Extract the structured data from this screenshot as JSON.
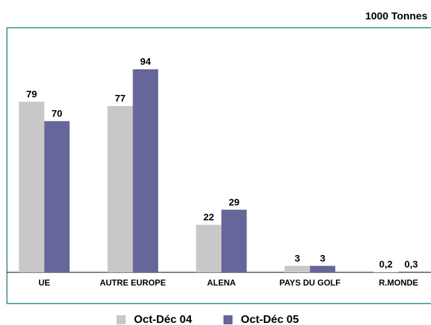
{
  "chart_data": {
    "type": "bar",
    "subtitle": "1000 Tonnes",
    "categories": [
      "UE",
      "AUTRE EUROPE",
      "ALENA",
      "PAYS DU GOLF",
      "R.MONDE"
    ],
    "series": [
      {
        "name": "Oct-Déc 04",
        "color": "#c8c8c8",
        "values": [
          79,
          77,
          22,
          3,
          0.2
        ],
        "value_labels": [
          "79",
          "77",
          "22",
          "3",
          "0,2"
        ]
      },
      {
        "name": "Oct-Déc 05",
        "color": "#67669a",
        "values": [
          70,
          94,
          29,
          3,
          0.3
        ],
        "value_labels": [
          "70",
          "94",
          "29",
          "3",
          "0,3"
        ]
      }
    ],
    "legend": "bottom"
  }
}
